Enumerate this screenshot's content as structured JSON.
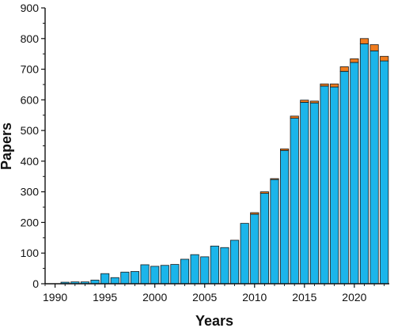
{
  "chart_data": {
    "type": "bar",
    "stacked": true,
    "xlabel": "Years",
    "ylabel": "Papers",
    "ylim": [
      0,
      900
    ],
    "xlim": [
      1989,
      2023.5
    ],
    "x_ticks": [
      1990,
      1995,
      2000,
      2005,
      2010,
      2015,
      2020
    ],
    "y_ticks": [
      0,
      100,
      200,
      300,
      400,
      500,
      600,
      700,
      800,
      900
    ],
    "grid": false,
    "legend": "none",
    "categories": [
      1991,
      1992,
      1993,
      1994,
      1995,
      1996,
      1997,
      1998,
      1999,
      2000,
      2001,
      2002,
      2003,
      2004,
      2005,
      2006,
      2007,
      2008,
      2009,
      2010,
      2011,
      2012,
      2013,
      2014,
      2015,
      2016,
      2017,
      2018,
      2019,
      2020,
      2021,
      2022,
      2023
    ],
    "series": [
      {
        "color": "#1bb5ea",
        "values": [
          5,
          6,
          6,
          12,
          33,
          20,
          38,
          40,
          62,
          57,
          60,
          63,
          80,
          95,
          88,
          123,
          118,
          142,
          197,
          227,
          295,
          340,
          435,
          540,
          592,
          590,
          645,
          642,
          693,
          722,
          783,
          760,
          727
        ]
      },
      {
        "color": "#f07c1e",
        "values": [
          0,
          0,
          0,
          0,
          0,
          0,
          0,
          0,
          0,
          0,
          0,
          0,
          0,
          0,
          0,
          0,
          0,
          0,
          0,
          5,
          5,
          3,
          5,
          7,
          7,
          6,
          7,
          10,
          15,
          12,
          17,
          20,
          15
        ]
      }
    ]
  }
}
